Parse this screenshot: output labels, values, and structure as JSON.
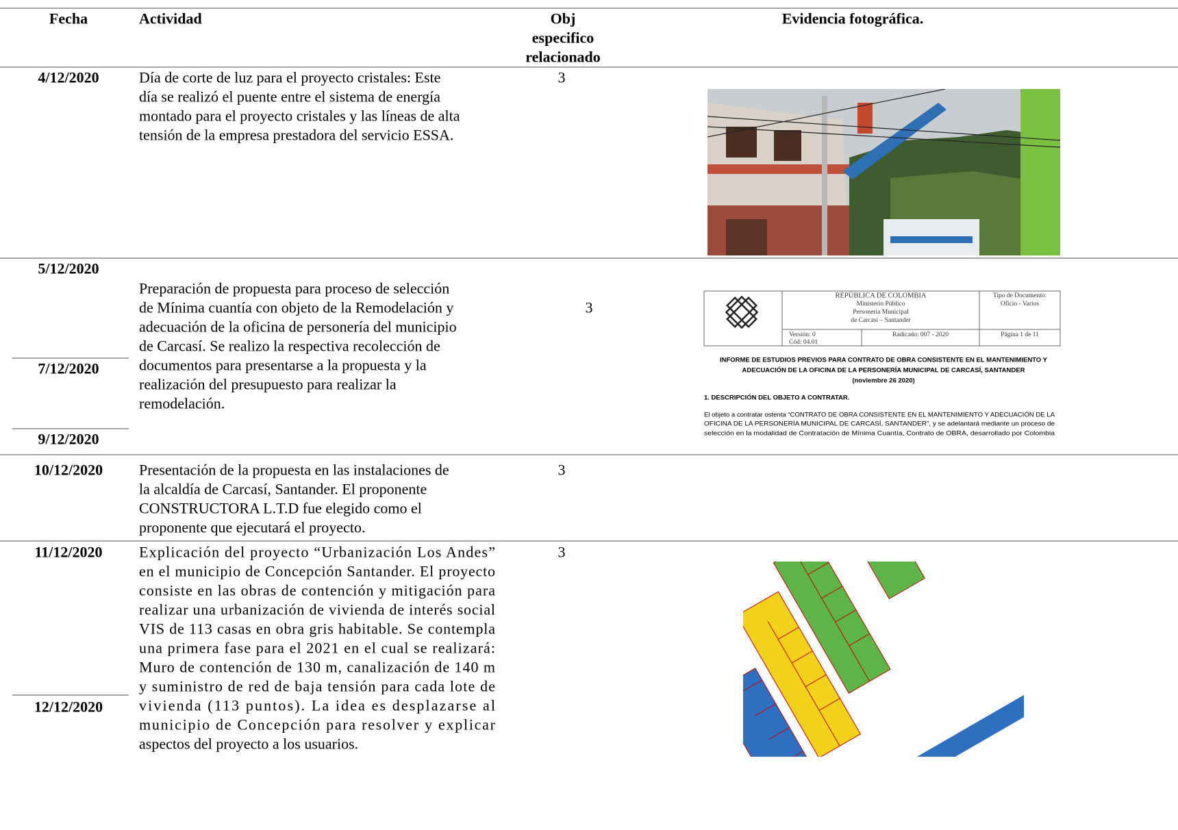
{
  "header": {
    "date": "Fecha",
    "activity": "Actividad",
    "objective": [
      "Obj",
      "especifico",
      "relacionado"
    ],
    "evidence": "Evidencia fotográfica."
  },
  "rows": [
    {
      "dates": [
        "4/12/2020"
      ],
      "objective": 3,
      "activity": [
        "Día de corte de luz para el proyecto cristales: Este",
        "día se realizó el puente entre el sistema de energía",
        "montado para el proyecto cristales y las líneas de alta",
        "tensión de la empresa prestadora del servicio ESSA."
      ]
    },
    {
      "dates": [
        "5/12/2020",
        "7/12/2020",
        "9/12/2020"
      ],
      "objective": 3,
      "activity": [
        "Preparación de propuesta para proceso de selección",
        "de Mínima cuantía con objeto de la Remodelación y",
        "adecuación de la oficina de personería del municipio",
        "de Carcasí. Se realizo la respectiva recolección de",
        "documentos para presentarse a la propuesta y la",
        "realización del presupuesto para realizar la",
        "remodelación."
      ]
    },
    {
      "dates": [
        "10/12/2020"
      ],
      "objective": 3,
      "activity": [
        "Presentación de la propuesta en las instalaciones de",
        "la alcaldía de Carcasí, Santander. El proponente",
        "CONSTRUCTORA L.T.D fue elegido como el",
        "proponente que ejecutará el proyecto."
      ]
    },
    {
      "dates": [
        "11/12/2020",
        "12/12/2020"
      ],
      "objective": 3,
      "activity": [
        "Explicación del proyecto “Urbanización Los Andes”",
        "en el municipio de Concepción Santander. El proyecto",
        "consiste en las obras de contención y mitigación para",
        "realizar una urbanización de vivienda de interés social",
        "VIS de 113 casas en obra gris habitable. Se contempla",
        "una primera fase para el 2021 en el cual se realizará:",
        "Muro de contención de 130 m, canalización de 140 m",
        "y suministro de red de baja tensión para cada lote de",
        "vivienda (113 puntos). La idea es desplazarse al",
        "municipio de Concepción para resolver y explicar",
        "aspectos del proyecto a los usuarios."
      ]
    }
  ],
  "document_image": {
    "header": [
      "REPÚBLICA DE COLOMBIA",
      "Ministerio Público",
      "Personería Municipal",
      "de Carcasí – Santander"
    ],
    "doc_type": [
      "Tipo de Documento:",
      "Oficio - Varios"
    ],
    "version": [
      "Versión: 0",
      "Cód: 04.01"
    ],
    "radicado": "Radicado: 007 - 2020",
    "page": "Página 1 de 11",
    "title": [
      "INFORME DE ESTUDIOS PREVIOS PARA CONTRATO DE OBRA CONSISTENTE EN EL MANTENIMIENTO Y",
      "ADECUACIÓN DE LA OFICINA DE LA PERSONERÍA MUNICIPAL DE CARCASÍ, SANTANDER",
      "(noviembre 26 2020)"
    ],
    "section": "1. DESCRIPCIÓN DEL OBJETO A CONTRATAR.",
    "paragraph": [
      "El objeto a contratar ostenta “CONTRATO DE OBRA CONSISTENTE EN EL MANTENIMIENTO Y ADECUACIÓN DE LA",
      "OFICINA DE LA PERSONERÍA MUNICIPAL DE CARCASÍ, SANTANDER”, y se adelantará mediante un proceso de",
      "selección en la modalidad de Contratación de Mínima Cuantía, Contrato de OBRA, desarrollado por Colombia"
    ]
  }
}
